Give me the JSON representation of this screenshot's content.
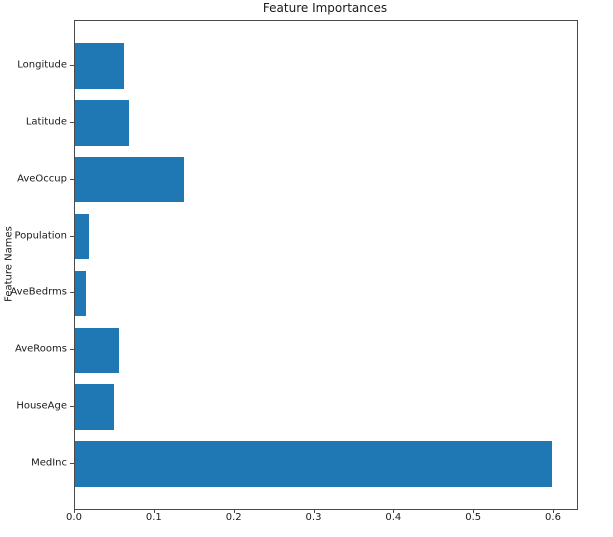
{
  "chart_data": {
    "type": "bar",
    "orientation": "horizontal",
    "title": "Feature Importances",
    "xlabel": "",
    "ylabel": "Feature Names",
    "categories_top_to_bottom": [
      "Longitude",
      "Latitude",
      "AveOccup",
      "Population",
      "AveBedrms",
      "AveRooms",
      "HouseAge",
      "MedInc"
    ],
    "values": [
      0.061,
      0.068,
      0.137,
      0.018,
      0.014,
      0.055,
      0.049,
      0.598
    ],
    "xlim": [
      0,
      0.6288
    ],
    "xticks": [
      0.0,
      0.1,
      0.2,
      0.3,
      0.4,
      0.5,
      0.6
    ],
    "xtick_labels": [
      "0.0",
      "0.1",
      "0.2",
      "0.3",
      "0.4",
      "0.5",
      "0.6"
    ],
    "ylim_units": [
      -0.79,
      7.79
    ],
    "bar_height_units": 0.8,
    "bar_color": "#1f77b4",
    "grid": false,
    "legend_position": "none",
    "background_color": "#ffffff"
  }
}
